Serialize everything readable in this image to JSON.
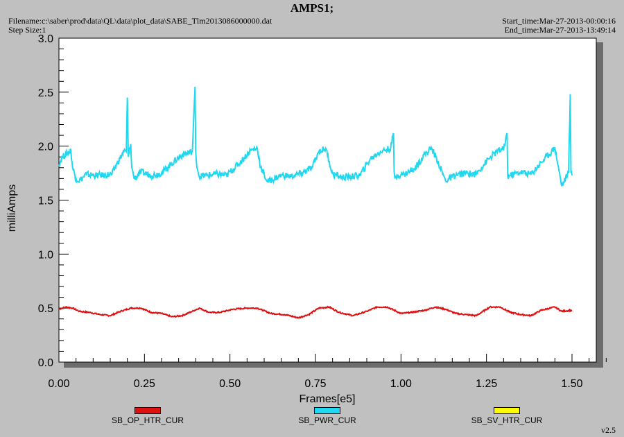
{
  "header": {
    "title": "AMPS1;",
    "filename": "Filename:c:\\saber\\prod\\data\\QL\\data\\plot_data\\SABE_Tlm2013086000000.dat",
    "step_size": "Step Size:1",
    "start_time": "Start_time:Mar-27-2013-00:00:16",
    "end_time": "End_time:Mar-27-2013-13:49:14"
  },
  "version": "v2.5",
  "colors": {
    "background": "#c0c0c0",
    "plot_area": "#ffffff"
  },
  "chart_data": {
    "type": "line",
    "title": "AMPS1;",
    "xlabel": "Frames[e5]",
    "ylabel": "milliAmps",
    "xlim": [
      0,
      1.5
    ],
    "ylim": [
      0,
      3.0
    ],
    "x_ticks": [
      "0.00",
      "0.25",
      "0.50",
      "0.75",
      "1.00",
      "1.25",
      "1.50"
    ],
    "y_ticks": [
      "0.0",
      "0.5",
      "1.0",
      "1.5",
      "2.0",
      "2.5",
      "3.0"
    ],
    "grid": false,
    "legend_position": "bottom",
    "series": [
      {
        "name": "SB_OP_HTR_CUR",
        "color": "#e01010",
        "x": [
          0.0,
          0.02,
          0.04,
          0.06,
          0.09,
          0.12,
          0.15,
          0.18,
          0.21,
          0.24,
          0.27,
          0.3,
          0.33,
          0.36,
          0.39,
          0.41,
          0.44,
          0.47,
          0.51,
          0.55,
          0.58,
          0.62,
          0.66,
          0.7,
          0.73,
          0.76,
          0.79,
          0.82,
          0.86,
          0.9,
          0.93,
          0.96,
          1.0,
          1.03,
          1.07,
          1.1,
          1.13,
          1.16,
          1.19,
          1.22,
          1.26,
          1.29,
          1.32,
          1.35,
          1.38,
          1.41,
          1.45,
          1.47,
          1.5
        ],
        "values": [
          0.49,
          0.51,
          0.5,
          0.47,
          0.46,
          0.44,
          0.43,
          0.47,
          0.5,
          0.5,
          0.46,
          0.45,
          0.42,
          0.43,
          0.47,
          0.5,
          0.46,
          0.46,
          0.49,
          0.5,
          0.5,
          0.45,
          0.44,
          0.41,
          0.44,
          0.5,
          0.51,
          0.46,
          0.43,
          0.47,
          0.51,
          0.51,
          0.45,
          0.46,
          0.48,
          0.51,
          0.49,
          0.45,
          0.44,
          0.43,
          0.51,
          0.51,
          0.46,
          0.44,
          0.43,
          0.48,
          0.51,
          0.47,
          0.48
        ]
      },
      {
        "name": "SB_PWR_CUR",
        "color": "#22d8f0",
        "x": [
          0.0,
          0.01,
          0.035,
          0.04,
          0.05,
          0.06,
          0.08,
          0.1,
          0.13,
          0.155,
          0.17,
          0.19,
          0.197,
          0.2,
          0.203,
          0.21,
          0.213,
          0.22,
          0.24,
          0.27,
          0.3,
          0.33,
          0.36,
          0.39,
          0.398,
          0.4,
          0.402,
          0.41,
          0.43,
          0.46,
          0.49,
          0.53,
          0.56,
          0.58,
          0.59,
          0.61,
          0.65,
          0.68,
          0.71,
          0.74,
          0.76,
          0.78,
          0.8,
          0.83,
          0.86,
          0.88,
          0.91,
          0.94,
          0.97,
          0.978,
          0.98,
          0.982,
          0.99,
          1.01,
          1.04,
          1.07,
          1.09,
          1.11,
          1.13,
          1.16,
          1.19,
          1.22,
          1.25,
          1.28,
          1.3,
          1.31,
          1.312,
          1.32,
          1.35,
          1.38,
          1.41,
          1.44,
          1.45,
          1.47,
          1.49,
          1.495,
          1.497,
          1.5
        ],
        "values": [
          1.83,
          1.9,
          1.96,
          1.8,
          1.7,
          1.68,
          1.74,
          1.73,
          1.73,
          1.74,
          1.84,
          1.95,
          1.95,
          2.45,
          1.9,
          2.02,
          1.8,
          1.7,
          1.76,
          1.73,
          1.75,
          1.84,
          1.92,
          1.95,
          2.55,
          1.95,
          1.85,
          1.72,
          1.73,
          1.74,
          1.73,
          1.85,
          1.96,
          1.98,
          1.8,
          1.67,
          1.73,
          1.72,
          1.75,
          1.8,
          1.95,
          1.98,
          1.74,
          1.71,
          1.72,
          1.73,
          1.88,
          1.95,
          1.98,
          2.12,
          1.76,
          1.7,
          1.73,
          1.74,
          1.79,
          1.93,
          1.98,
          1.84,
          1.68,
          1.73,
          1.75,
          1.74,
          1.86,
          1.95,
          1.97,
          2.12,
          1.72,
          1.73,
          1.76,
          1.74,
          1.85,
          1.95,
          1.99,
          1.63,
          1.76,
          2.48,
          1.76,
          1.73
        ]
      },
      {
        "name": "SB_SV_HTR_CUR",
        "color": "#ffff00",
        "x": [],
        "values": []
      }
    ]
  }
}
